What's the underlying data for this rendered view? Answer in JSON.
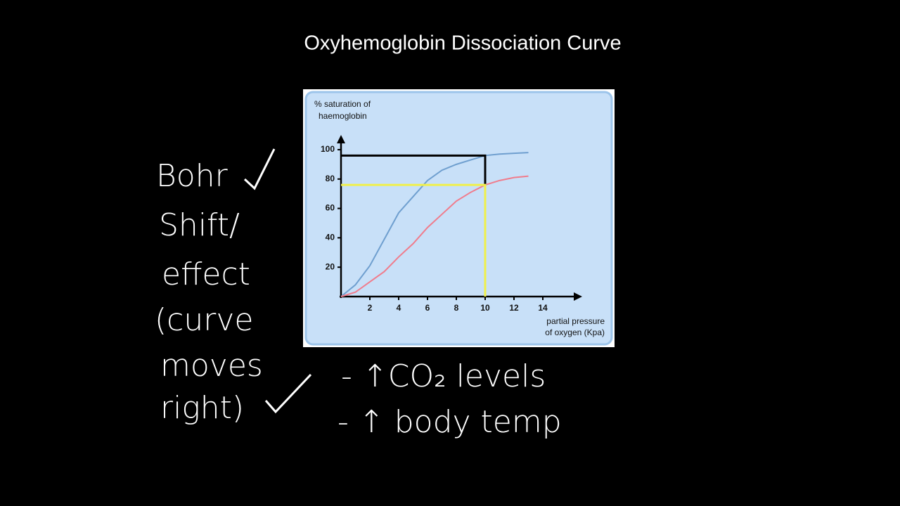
{
  "chart_data": {
    "type": "line",
    "title": "Oxyhemoglobin Dissociation Curve",
    "y_label": [
      "% saturation of",
      "haemoglobin"
    ],
    "x_label": [
      "partial pressure",
      "of oxygen (Kpa)"
    ],
    "xlim": [
      0,
      16
    ],
    "ylim": [
      0,
      105
    ],
    "xticks": [
      2,
      4,
      6,
      8,
      10,
      12,
      14
    ],
    "yticks": [
      20,
      40,
      60,
      80,
      100
    ],
    "x": [
      0,
      1,
      2,
      3,
      4,
      5,
      6,
      7,
      8,
      9,
      10,
      11,
      12,
      13
    ],
    "series": [
      {
        "color": "#6f9fcf",
        "values": [
          0,
          8,
          21,
          39,
          57,
          68,
          79,
          86,
          90,
          93,
          96,
          97,
          97.5,
          98
        ]
      },
      {
        "color": "#f07c8c",
        "values": [
          0,
          3,
          10,
          17,
          27,
          36,
          47,
          56,
          65,
          71,
          76,
          79,
          81,
          82
        ]
      }
    ],
    "guides": [
      {
        "x": 10,
        "y": 96,
        "color": "#000000"
      },
      {
        "x": 10,
        "y": 76,
        "color": "#f0f04a"
      }
    ],
    "annotations": [
      "Bohr",
      "Shift/",
      "effect",
      "(curve",
      "moves",
      "right)",
      "- ↑CO₂ levels",
      "- ↑ body temp"
    ]
  }
}
